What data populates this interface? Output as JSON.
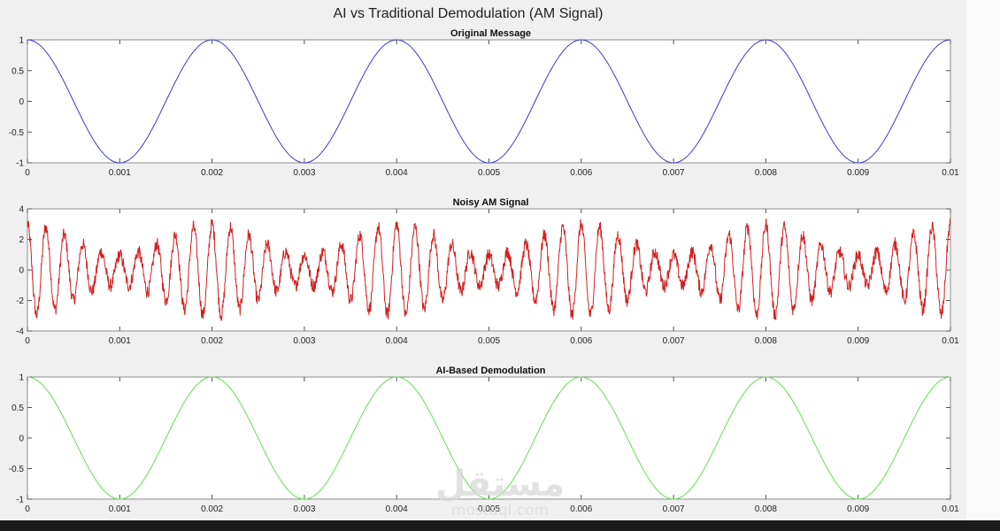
{
  "figure_title": "AI vs Traditional Demodulation (AM Signal)",
  "watermark": {
    "arabic": "مستقل",
    "latin": "mostaql.com"
  },
  "colors": {
    "message": "#3b3bd0",
    "noisy": "#d42020",
    "ai": "#66dd55",
    "axes": "#8c8c8c"
  },
  "chart_data": [
    {
      "type": "line",
      "title": "Original Message",
      "xlim": [
        0,
        0.01
      ],
      "ylim": [
        -1,
        1
      ],
      "xticks": [
        0,
        0.001,
        0.002,
        0.003,
        0.004,
        0.005,
        0.006,
        0.007,
        0.008,
        0.009,
        0.01
      ],
      "xtick_labels": [
        "0",
        "0.001",
        "0.002",
        "0.003",
        "0.004",
        "0.005",
        "0.006",
        "0.007",
        "0.008",
        "0.009",
        "0.01"
      ],
      "yticks": [
        -1,
        -0.5,
        0,
        0.5,
        1
      ],
      "ytick_labels": [
        "-1",
        "-0.5",
        "0",
        "0.5",
        "1"
      ],
      "series": [
        {
          "color": "#3b3bd0",
          "function": "cos",
          "frequency_hz": 500,
          "amplitude": 1
        }
      ]
    },
    {
      "type": "line",
      "title": "Noisy AM Signal",
      "xlim": [
        0,
        0.01
      ],
      "ylim": [
        -4,
        4
      ],
      "xticks": [
        0,
        0.001,
        0.002,
        0.003,
        0.004,
        0.005,
        0.006,
        0.007,
        0.008,
        0.009,
        0.01
      ],
      "xtick_labels": [
        "0",
        "0.001",
        "0.002",
        "0.003",
        "0.004",
        "0.005",
        "0.006",
        "0.007",
        "0.008",
        "0.009",
        "0.01"
      ],
      "yticks": [
        -4,
        -2,
        0,
        2,
        4
      ],
      "ytick_labels": [
        "-4",
        "-2",
        "0",
        "2",
        "4"
      ],
      "series": [
        {
          "color": "#d42020",
          "function": "am_noisy",
          "carrier_hz": 5000,
          "message_hz": 500,
          "peak_amplitude": 3,
          "trough_amplitude": 1
        }
      ]
    },
    {
      "type": "line",
      "title": "AI-Based Demodulation",
      "xlim": [
        0,
        0.01
      ],
      "ylim": [
        -1,
        1
      ],
      "xticks": [
        0,
        0.001,
        0.002,
        0.003,
        0.004,
        0.005,
        0.006,
        0.007,
        0.008,
        0.009,
        0.01
      ],
      "xtick_labels": [
        "0",
        "0.001",
        "0.002",
        "0.003",
        "0.004",
        "0.005",
        "0.006",
        "0.007",
        "0.008",
        "0.009",
        "0.01"
      ],
      "yticks": [
        -1,
        -0.5,
        0,
        0.5,
        1
      ],
      "ytick_labels": [
        "-1",
        "-0.5",
        "0",
        "0.5",
        "1"
      ],
      "series": [
        {
          "color": "#66dd55",
          "function": "cos",
          "frequency_hz": 500,
          "amplitude": 1
        }
      ]
    }
  ]
}
